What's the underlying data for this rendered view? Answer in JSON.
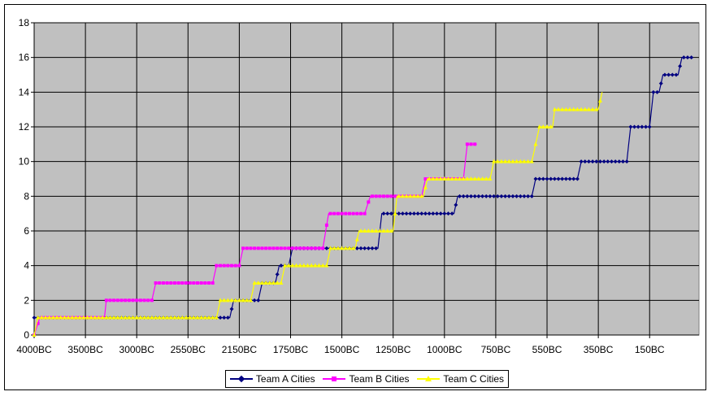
{
  "chart_data": {
    "type": "line",
    "x_tick_labels": [
      "4000BC",
      "3500BC",
      "3000BC",
      "2550BC",
      "2150BC",
      "1750BC",
      "1500BC",
      "1250BC",
      "1000BC",
      "750BC",
      "550BC",
      "350BC",
      "150BC"
    ],
    "ylim": [
      0,
      18
    ],
    "y_ticks": [
      0,
      2,
      4,
      6,
      8,
      10,
      12,
      14,
      16,
      18
    ],
    "grid": true,
    "legend_position": "bottom",
    "series": [
      {
        "name": "Team A Cities",
        "color": "#000080",
        "marker": "diamond",
        "steps": [
          [
            0,
            1
          ],
          [
            6,
            1
          ],
          [
            103,
            1
          ],
          [
            105,
            2
          ],
          [
            118,
            2
          ],
          [
            120,
            3
          ],
          [
            127,
            3
          ],
          [
            129,
            4
          ],
          [
            134,
            4
          ],
          [
            136,
            5
          ],
          [
            181,
            5
          ],
          [
            183,
            7
          ],
          [
            221,
            7
          ],
          [
            223,
            8
          ],
          [
            262,
            8
          ],
          [
            264,
            9
          ],
          [
            286,
            9
          ],
          [
            288,
            10
          ],
          [
            312,
            10
          ],
          [
            314,
            12
          ],
          [
            324,
            12
          ],
          [
            326,
            14
          ],
          [
            329,
            14
          ],
          [
            331,
            15
          ],
          [
            339,
            15
          ],
          [
            341,
            16
          ],
          [
            347,
            16
          ]
        ],
        "count": 348
      },
      {
        "name": "Team B Cities",
        "color": "#FF00FF",
        "marker": "square",
        "steps": [
          [
            0,
            0
          ],
          [
            3,
            1
          ],
          [
            37,
            1
          ],
          [
            38,
            2
          ],
          [
            62,
            2
          ],
          [
            64,
            3
          ],
          [
            94,
            3
          ],
          [
            96,
            4
          ],
          [
            108,
            4
          ],
          [
            110,
            5
          ],
          [
            152,
            5
          ],
          [
            155,
            7
          ],
          [
            174,
            7
          ],
          [
            177,
            8
          ],
          [
            204,
            8
          ],
          [
            206,
            9
          ],
          [
            226,
            9
          ],
          [
            228,
            11
          ],
          [
            233,
            11
          ]
        ],
        "count": 234
      },
      {
        "name": "Team C Cities",
        "color": "#FFFF00",
        "marker": "triangle",
        "steps": [
          [
            0,
            0
          ],
          [
            2,
            1
          ],
          [
            96,
            1
          ],
          [
            98,
            2
          ],
          [
            114,
            2
          ],
          [
            116,
            3
          ],
          [
            130,
            3
          ],
          [
            132,
            4
          ],
          [
            154,
            4
          ],
          [
            156,
            5
          ],
          [
            169,
            5
          ],
          [
            171,
            6
          ],
          [
            189,
            6
          ],
          [
            191,
            8
          ],
          [
            205,
            8
          ],
          [
            207,
            9
          ],
          [
            240,
            9
          ],
          [
            242,
            10
          ],
          [
            262,
            10
          ],
          [
            264,
            11
          ],
          [
            266,
            12
          ],
          [
            273,
            12
          ],
          [
            274,
            13
          ],
          [
            297,
            13
          ],
          [
            299,
            14
          ]
        ],
        "count": 300
      }
    ]
  }
}
